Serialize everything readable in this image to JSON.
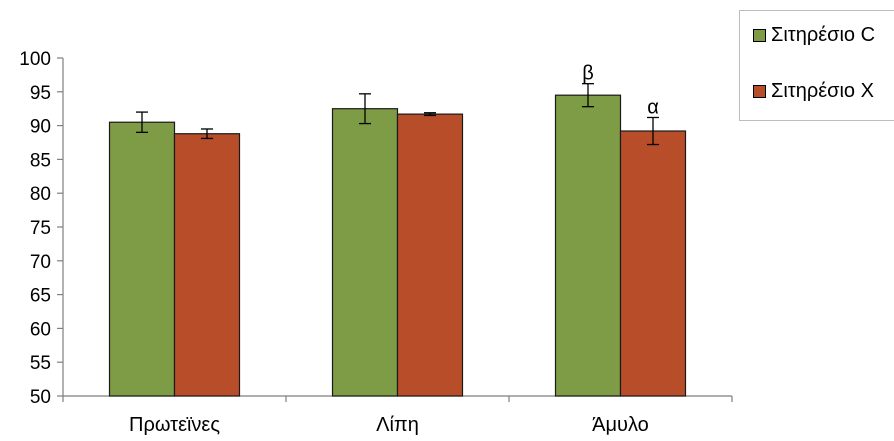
{
  "chart_data": {
    "type": "bar",
    "categories": [
      "Πρωτεϊνες",
      "Λίπη",
      "Άμυλο"
    ],
    "series": [
      {
        "name": "Σιτηρέσιο C",
        "values": [
          90.5,
          92.5,
          94.5
        ],
        "errors": [
          1.5,
          2.2,
          1.7
        ],
        "color": "#7d9c45"
      },
      {
        "name": "Σιτηρέσιο Χ",
        "values": [
          88.8,
          91.7,
          89.2
        ],
        "errors": [
          0.7,
          0.2,
          2.0
        ],
        "color": "#b84d2a"
      }
    ],
    "annotations": [
      {
        "category": "Άμυλο",
        "series": "Σιτηρέσιο C",
        "text": "β"
      },
      {
        "category": "Άμυλο",
        "series": "Σιτηρέσιο Χ",
        "text": "α"
      }
    ],
    "ylim": [
      50,
      100
    ],
    "yticks": [
      50,
      55,
      60,
      65,
      70,
      75,
      80,
      85,
      90,
      95,
      100
    ],
    "grid": false,
    "legend_position": "top-right"
  },
  "legend": {
    "items": [
      {
        "label": "Σιτηρέσιο C",
        "color": "#7d9c45"
      },
      {
        "label": "Σιτηρέσιο Χ",
        "color": "#b84d2a"
      }
    ]
  }
}
